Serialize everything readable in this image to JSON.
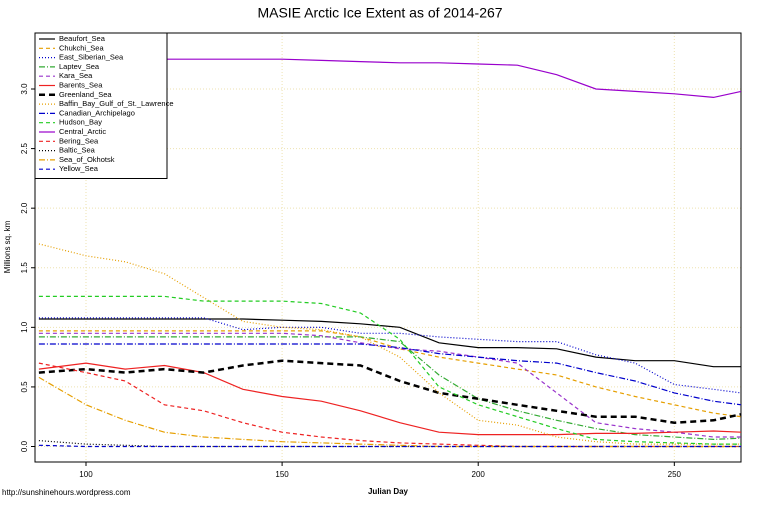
{
  "chart_data": {
    "type": "line",
    "title": "MASIE Arctic Ice Extent as of 2014-267",
    "x_label": "Julian Day",
    "y_label": "Millions sq. km",
    "source": "http://sunshinehours.wordpress.com",
    "xlim": [
      87,
      267
    ],
    "ylim": [
      -0.13,
      3.47
    ],
    "xticks": [
      100,
      150,
      200,
      250
    ],
    "yticks": [
      {
        "value": 0,
        "label": "0.0"
      },
      {
        "value": 0.5,
        "label": "0.5"
      },
      {
        "value": 1,
        "label": "1.0"
      },
      {
        "value": 1.5,
        "label": "1.5"
      },
      {
        "value": 2,
        "label": "2.0"
      },
      {
        "value": 2.5,
        "label": "2.5"
      },
      {
        "value": 3,
        "label": "3.0"
      }
    ],
    "grid": true,
    "legend": "top-left",
    "x": [
      88,
      100,
      110,
      120,
      130,
      140,
      150,
      160,
      170,
      180,
      190,
      200,
      210,
      220,
      230,
      240,
      250,
      260,
      267
    ],
    "series": [
      {
        "name": "Beaufort_Sea",
        "color": "#000000",
        "style": "solid",
        "values": [
          1.07,
          1.07,
          1.07,
          1.07,
          1.07,
          1.07,
          1.06,
          1.05,
          1.03,
          1.0,
          0.87,
          0.83,
          0.83,
          0.82,
          0.75,
          0.72,
          0.72,
          0.67,
          0.67
        ]
      },
      {
        "name": "Chukchi_Sea",
        "color": "#e69f00",
        "style": "dashed",
        "values": [
          0.97,
          0.97,
          0.97,
          0.97,
          0.97,
          0.97,
          0.97,
          0.97,
          0.92,
          0.82,
          0.75,
          0.7,
          0.65,
          0.6,
          0.5,
          0.42,
          0.35,
          0.28,
          0.25
        ]
      },
      {
        "name": "East_Siberian_Sea",
        "color": "#0000cc",
        "style": "dotted",
        "values": [
          1.08,
          1.08,
          1.08,
          1.08,
          1.08,
          0.98,
          1.0,
          1.0,
          0.95,
          0.95,
          0.92,
          0.9,
          0.88,
          0.88,
          0.77,
          0.7,
          0.52,
          0.48,
          0.45
        ]
      },
      {
        "name": "Laptev_Sea",
        "color": "#33aa33",
        "style": "dashdot",
        "values": [
          0.92,
          0.92,
          0.92,
          0.92,
          0.92,
          0.92,
          0.92,
          0.92,
          0.92,
          0.88,
          0.6,
          0.4,
          0.3,
          0.22,
          0.15,
          0.1,
          0.08,
          0.06,
          0.07
        ]
      },
      {
        "name": "Kara_Sea",
        "color": "#9933cc",
        "style": "dashed",
        "values": [
          0.95,
          0.95,
          0.95,
          0.95,
          0.95,
          0.95,
          0.95,
          0.93,
          0.87,
          0.82,
          0.8,
          0.75,
          0.7,
          0.45,
          0.2,
          0.15,
          0.12,
          0.08,
          0.08
        ]
      },
      {
        "name": "Barents_Sea",
        "color": "#ee2222",
        "style": "solid",
        "values": [
          0.65,
          0.7,
          0.65,
          0.68,
          0.62,
          0.48,
          0.42,
          0.38,
          0.3,
          0.2,
          0.12,
          0.1,
          0.1,
          0.1,
          0.11,
          0.11,
          0.12,
          0.13,
          0.12
        ]
      },
      {
        "name": "Greenland_Sea",
        "color": "#000000",
        "style": "thickdash",
        "values": [
          0.62,
          0.65,
          0.62,
          0.65,
          0.62,
          0.68,
          0.72,
          0.7,
          0.68,
          0.55,
          0.45,
          0.4,
          0.35,
          0.3,
          0.25,
          0.25,
          0.2,
          0.22,
          0.27
        ]
      },
      {
        "name": "Baffin_Bay_Gulf_of_St._Lawrence",
        "color": "#e69f00",
        "style": "dotted",
        "values": [
          1.7,
          1.6,
          1.55,
          1.45,
          1.25,
          1.05,
          1.0,
          0.98,
          0.92,
          0.75,
          0.45,
          0.22,
          0.18,
          0.08,
          0.04,
          0.02,
          0.02,
          0.02,
          0.02
        ]
      },
      {
        "name": "Canadian_Archipelago",
        "color": "#0000cc",
        "style": "dashdot",
        "values": [
          0.86,
          0.86,
          0.86,
          0.86,
          0.86,
          0.86,
          0.86,
          0.86,
          0.86,
          0.83,
          0.78,
          0.75,
          0.72,
          0.7,
          0.62,
          0.55,
          0.45,
          0.38,
          0.35
        ]
      },
      {
        "name": "Hudson_Bay",
        "color": "#22cc22",
        "style": "dashed",
        "values": [
          1.26,
          1.26,
          1.26,
          1.26,
          1.22,
          1.22,
          1.22,
          1.2,
          1.12,
          0.9,
          0.5,
          0.35,
          0.25,
          0.15,
          0.06,
          0.04,
          0.03,
          0.02,
          0.02
        ]
      },
      {
        "name": "Central_Arctic",
        "color": "#9900cc",
        "style": "solid",
        "values": [
          3.23,
          3.24,
          3.25,
          3.25,
          3.25,
          3.25,
          3.25,
          3.24,
          3.23,
          3.22,
          3.22,
          3.21,
          3.2,
          3.12,
          3.0,
          2.98,
          2.96,
          2.93,
          2.98
        ]
      },
      {
        "name": "Bering_Sea",
        "color": "#ee2222",
        "style": "dashed",
        "values": [
          0.7,
          0.62,
          0.55,
          0.35,
          0.3,
          0.2,
          0.12,
          0.08,
          0.05,
          0.03,
          0.02,
          0.01,
          0,
          0,
          0,
          0,
          0,
          0,
          0
        ]
      },
      {
        "name": "Baltic_Sea",
        "color": "#000000",
        "style": "dotted",
        "values": [
          0.05,
          0.02,
          0.01,
          0,
          0,
          0,
          0,
          0,
          0,
          0,
          0,
          0,
          0,
          0,
          0,
          0,
          0,
          0,
          0
        ]
      },
      {
        "name": "Sea_of_Okhotsk",
        "color": "#e69f00",
        "style": "dashdot",
        "values": [
          0.58,
          0.35,
          0.22,
          0.12,
          0.08,
          0.06,
          0.04,
          0.03,
          0.02,
          0.01,
          0,
          0,
          0,
          0,
          0,
          0,
          0,
          0,
          0
        ]
      },
      {
        "name": "Yellow_Sea",
        "color": "#0000cc",
        "style": "dashed",
        "values": [
          0.01,
          0,
          0,
          0,
          0,
          0,
          0,
          0,
          0,
          0,
          0,
          0,
          0,
          0,
          0,
          0,
          0,
          0,
          0
        ]
      }
    ]
  }
}
